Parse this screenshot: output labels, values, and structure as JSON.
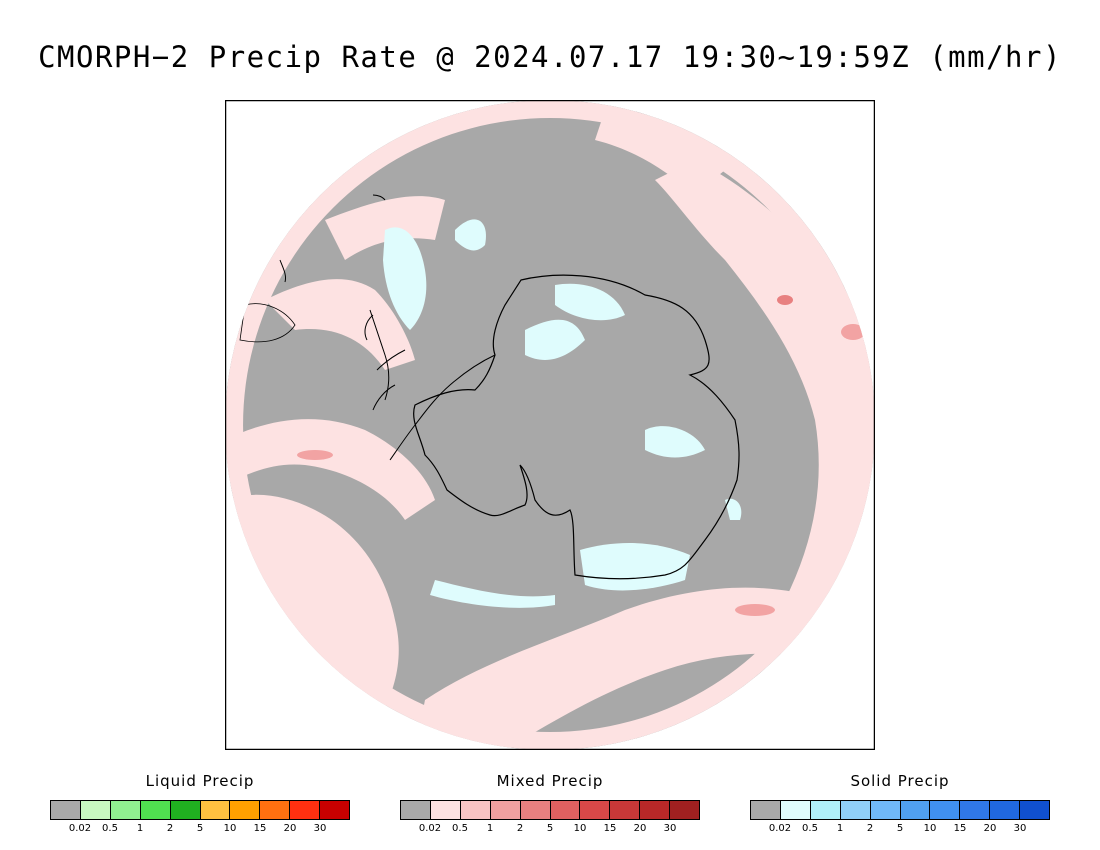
{
  "title": "CMORPH−2 Precip Rate @ 2024.07.17 19:30~19:59Z (mm/hr)",
  "map": {
    "projection": "south-polar-stereographic",
    "colors": {
      "no_precip": "#a8a8a8",
      "mixed_light": "#fde2e2",
      "mixed_medium": "#f2a3a3",
      "mixed_heavy": "#e88080",
      "solid_light": "#dffcfd",
      "coastline": "#000000"
    }
  },
  "legends": [
    {
      "title": "Liquid Precip",
      "colors": [
        "#a8a8a8",
        "#c8f8c0",
        "#90f090",
        "#50e050",
        "#20b020",
        "#ffc040",
        "#ffa000",
        "#ff7010",
        "#ff3010",
        "#c80000"
      ],
      "ticks": [
        "0.02",
        "0.5",
        "1",
        "2",
        "5",
        "10",
        "15",
        "20",
        "30"
      ]
    },
    {
      "title": "Mixed Precip",
      "colors": [
        "#a8a8a8",
        "#fde2e2",
        "#f8c4c4",
        "#f0a0a0",
        "#e88080",
        "#e06060",
        "#d84848",
        "#c83838",
        "#b82828",
        "#a02020"
      ],
      "ticks": [
        "0.02",
        "0.5",
        "1",
        "2",
        "5",
        "10",
        "15",
        "20",
        "30"
      ]
    },
    {
      "title": "Solid Precip",
      "colors": [
        "#a8a8a8",
        "#e0fcfc",
        "#b0f0fa",
        "#90d0f8",
        "#70b8f8",
        "#50a0f0",
        "#4090f0",
        "#3078e8",
        "#2068e0",
        "#1050d0"
      ],
      "ticks": [
        "0.02",
        "0.5",
        "1",
        "2",
        "5",
        "10",
        "15",
        "20",
        "30"
      ]
    }
  ]
}
